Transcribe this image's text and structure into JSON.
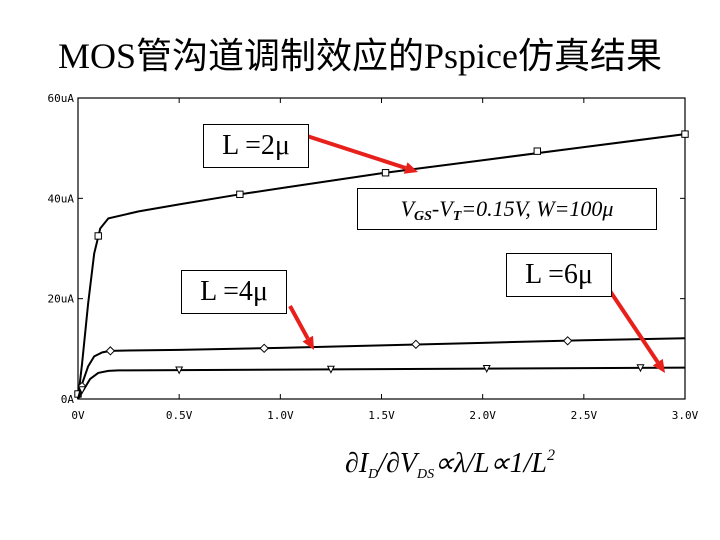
{
  "title": "MOS管沟道调制效应的Pspice仿真结果",
  "labels": {
    "l2": "L =2μ",
    "l4": "L =4μ",
    "l6": "L =6μ",
    "cond": {
      "v1": "V",
      "s1": "GS",
      "v2": "-V",
      "s2": "T",
      "rest": "=0.15V, W=100μ"
    }
  },
  "formula": {
    "p1": "∂I",
    "s1": "D",
    "p2": "/∂V",
    "s2": "DS",
    "p3": "∝λ/L∝1/L",
    "sup": "2"
  },
  "chart_data": {
    "type": "line",
    "xlim": [
      0,
      3.0
    ],
    "ylim": [
      0,
      60
    ],
    "x_ticks": [
      "0V",
      "0.5V",
      "1.0V",
      "1.5V",
      "2.0V",
      "2.5V",
      "3.0V"
    ],
    "y_ticks": [
      "0A",
      "20uA",
      "40uA",
      "60uA"
    ],
    "x_tick_values": [
      0,
      0.5,
      1.0,
      1.5,
      2.0,
      2.5,
      3.0
    ],
    "y_tick_values": [
      0,
      20,
      40,
      60
    ],
    "grid": false,
    "series": [
      {
        "name": "L =2μ",
        "marker": "square",
        "x": [
          0,
          0.02,
          0.05,
          0.08,
          0.11,
          0.15,
          0.3,
          0.5,
          0.8,
          1.0,
          1.5,
          2.0,
          2.5,
          3.0
        ],
        "y": [
          0,
          7,
          19,
          29,
          34,
          36,
          37.4,
          38.8,
          40.8,
          42,
          45,
          47.6,
          50.2,
          52.8
        ],
        "marker_x": [
          0,
          0.1,
          0.8,
          1.52,
          2.27,
          3.0
        ],
        "marker_y": [
          1,
          32.5,
          40.8,
          45.1,
          49.4,
          52.8
        ]
      },
      {
        "name": "L =4μ",
        "marker": "diamond",
        "x": [
          0,
          0.02,
          0.05,
          0.08,
          0.12,
          0.16,
          0.3,
          0.5,
          1.0,
          1.5,
          2.0,
          2.5,
          3.0
        ],
        "y": [
          0,
          3,
          6.5,
          8.5,
          9.3,
          9.6,
          9.7,
          9.8,
          10.2,
          10.7,
          11.2,
          11.7,
          12.1
        ],
        "marker_x": [
          0.02,
          0.16,
          0.92,
          1.67,
          2.42
        ],
        "marker_y": [
          2.5,
          9.6,
          10.1,
          10.9,
          11.6
        ]
      },
      {
        "name": "L =6μ",
        "marker": "triangle",
        "x": [
          0,
          0.03,
          0.06,
          0.1,
          0.15,
          0.2,
          0.5,
          1.0,
          1.5,
          2.0,
          2.5,
          3.0
        ],
        "y": [
          0,
          2,
          4,
          5.2,
          5.6,
          5.7,
          5.75,
          5.85,
          5.95,
          6.05,
          6.15,
          6.25
        ],
        "marker_x": [
          0.02,
          0.5,
          1.25,
          2.02,
          2.78
        ],
        "marker_y": [
          1.8,
          5.75,
          5.9,
          6.05,
          6.2
        ]
      }
    ]
  }
}
